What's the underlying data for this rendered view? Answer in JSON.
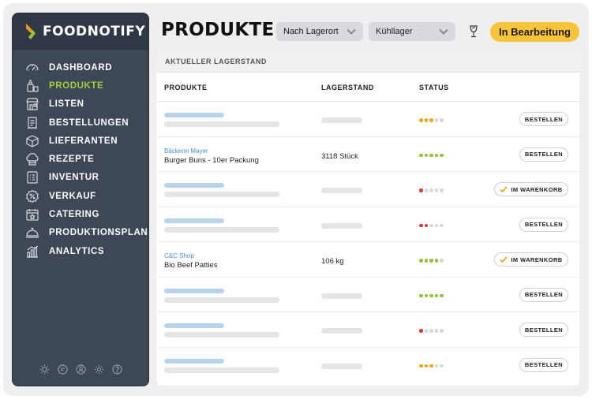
{
  "brand": {
    "name": "FOODNOTIFY"
  },
  "sidebar": {
    "items": [
      {
        "label": "DASHBOARD",
        "icon": "dashboard-icon"
      },
      {
        "label": "PRODUKTE",
        "icon": "bottle-icon",
        "active": true
      },
      {
        "label": "LISTEN",
        "icon": "store-icon"
      },
      {
        "label": "BESTELLUNGEN",
        "icon": "receipt-icon"
      },
      {
        "label": "LIEFERANTEN",
        "icon": "box-icon"
      },
      {
        "label": "REZEPTE",
        "icon": "chef-hat-icon"
      },
      {
        "label": "INVENTUR",
        "icon": "inventory-icon"
      },
      {
        "label": "VERKAUF",
        "icon": "discount-icon"
      },
      {
        "label": "CATERING",
        "icon": "calendar-icon"
      },
      {
        "label": "PRODUKTIONSPLAN",
        "icon": "cloche-icon"
      },
      {
        "label": "ANALYTICS",
        "icon": "chart-icon"
      }
    ],
    "footer_icons": [
      "sun-icon",
      "chat-icon",
      "user-icon",
      "gear-icon",
      "help-icon"
    ]
  },
  "header": {
    "title": "PRODUKTE",
    "filter_location": "Nach Lagerort",
    "filter_store": "Kühllager",
    "status_button": "In Bearbeitung",
    "wine_icon": "wine-glass-icon"
  },
  "panel": {
    "section_title": "AKTUELLER LAGERSTAND",
    "columns": {
      "products": "PRODUKTE",
      "stock": "LAGERSTAND",
      "status": "STATUS"
    },
    "order_label": "BESTELLEN",
    "cart_label": "IM WARENKORB",
    "rows": [
      {
        "supplier": "",
        "product": "",
        "stock": "",
        "status_level": 3,
        "status_color": "#f2a516",
        "action": "order"
      },
      {
        "supplier": "Bäckerei Mayer",
        "product": "Burger Buns - 10er Packung",
        "stock": "3118 Stück",
        "status_level": 5,
        "status_color": "#8fc43a",
        "action": "order"
      },
      {
        "supplier": "",
        "product": "",
        "stock": "",
        "status_level": 1,
        "status_color": "#e0392d",
        "action": "cart"
      },
      {
        "supplier": "",
        "product": "",
        "stock": "",
        "status_level": 2,
        "status_color": "#e0392d",
        "action": "order"
      },
      {
        "supplier": "C&C Shop",
        "product": "Bio Beef Patties",
        "stock": "106 kg",
        "status_level": 4,
        "status_color": "#8fc43a",
        "action": "cart"
      },
      {
        "supplier": "",
        "product": "",
        "stock": "",
        "status_level": 5,
        "status_color": "#8fc43a",
        "action": "order"
      },
      {
        "supplier": "",
        "product": "",
        "stock": "",
        "status_level": 1,
        "status_color": "#e0392d",
        "action": "order"
      },
      {
        "supplier": "",
        "product": "",
        "stock": "",
        "status_level": 3,
        "status_color": "#f2a516",
        "action": "order"
      }
    ]
  },
  "colors": {
    "sidebar_bg": "#3e4756",
    "active_nav": "#a6cd3c",
    "status_button": "#f8c53a",
    "link_blue": "#4a8fd0"
  }
}
